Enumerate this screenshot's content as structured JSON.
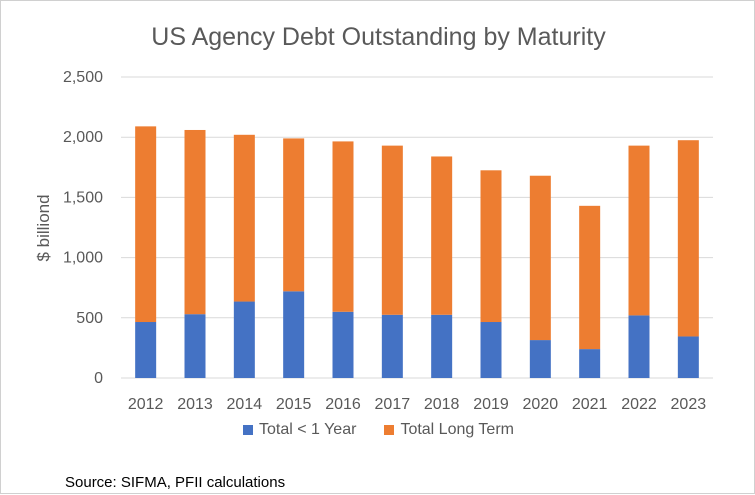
{
  "chart_data": {
    "type": "bar",
    "stacked": true,
    "title": "US Agency Debt Outstanding by Maturity",
    "xlabel": "",
    "ylabel": "$ billiond",
    "ylim": [
      0,
      2500
    ],
    "yticks": [
      0,
      500,
      1000,
      1500,
      2000,
      2500
    ],
    "ytick_labels": [
      "0",
      "500",
      "1,000",
      "1,500",
      "2,000",
      "2,500"
    ],
    "grid": true,
    "legend_position": "bottom",
    "categories": [
      "2012",
      "2013",
      "2014",
      "2015",
      "2016",
      "2017",
      "2018",
      "2019",
      "2020",
      "2021",
      "2022",
      "2023"
    ],
    "series": [
      {
        "name": "Total < 1 Year",
        "color": "#4472C4",
        "values": [
          465,
          530,
          635,
          720,
          550,
          525,
          525,
          465,
          315,
          240,
          520,
          345
        ]
      },
      {
        "name": "Total Long Term",
        "color": "#ED7D31",
        "values": [
          1625,
          1530,
          1385,
          1270,
          1415,
          1405,
          1315,
          1260,
          1365,
          1190,
          1410,
          1630
        ]
      }
    ]
  },
  "source_note": "Source: SIFMA, PFII calculations"
}
